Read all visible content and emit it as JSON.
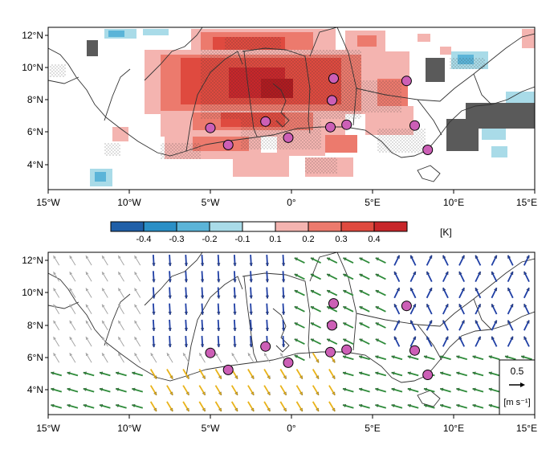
{
  "top_map": {
    "lat_labels": [
      "12°N",
      "10°N",
      "8°N",
      "6°N",
      "4°N"
    ],
    "lon_labels": [
      "15°W",
      "10°W",
      "5°W",
      "0°",
      "5°E",
      "10°E",
      "15°E"
    ],
    "lon_range": [
      -15,
      15
    ],
    "lat_range": [
      2.5,
      12.5
    ]
  },
  "colorbar": {
    "tick_labels": [
      "-0.4",
      "-0.3",
      "-0.2",
      "-0.1",
      "0.1",
      "0.2",
      "0.3",
      "0.4"
    ],
    "unit": "[K]",
    "colors": [
      "#1f5fa8",
      "#2a8fc6",
      "#5bb4d8",
      "#a9dbe8",
      "#ffffff",
      "#f4b4b0",
      "#ec7a6d",
      "#df4a3f",
      "#c8262a"
    ]
  },
  "bottom_map": {
    "lat_labels": [
      "12°N",
      "10°N",
      "8°N",
      "6°N",
      "4°N"
    ],
    "lon_labels": [
      "15°W",
      "10°W",
      "5°W",
      "0°",
      "5°E",
      "10°E",
      "15°E"
    ],
    "lon_range": [
      -15,
      15
    ],
    "lat_range": [
      2.5,
      12.5
    ]
  },
  "reference_vector": {
    "value": "0.5",
    "unit": "[m s⁻¹]"
  },
  "stations": [
    {
      "lon": -5.0,
      "lat": 6.3
    },
    {
      "lon": -3.9,
      "lat": 5.25
    },
    {
      "lon": -1.6,
      "lat": 6.7
    },
    {
      "lon": -0.2,
      "lat": 5.7
    },
    {
      "lon": 2.4,
      "lat": 6.35
    },
    {
      "lon": 3.4,
      "lat": 6.5
    },
    {
      "lon": 2.5,
      "lat": 8.0
    },
    {
      "lon": 2.6,
      "lat": 9.35
    },
    {
      "lon": 7.1,
      "lat": 9.2
    },
    {
      "lon": 7.6,
      "lat": 6.45
    },
    {
      "lon": 8.4,
      "lat": 4.95
    }
  ],
  "colors": {
    "station_fill": "#cc5fb6",
    "missing_gray": "#5a5a5a",
    "vector_blue": "#1f3fa5",
    "vector_green": "#2e8b3a",
    "vector_yellow": "#e9b31a",
    "vector_gray": "#a6a6a6"
  }
}
